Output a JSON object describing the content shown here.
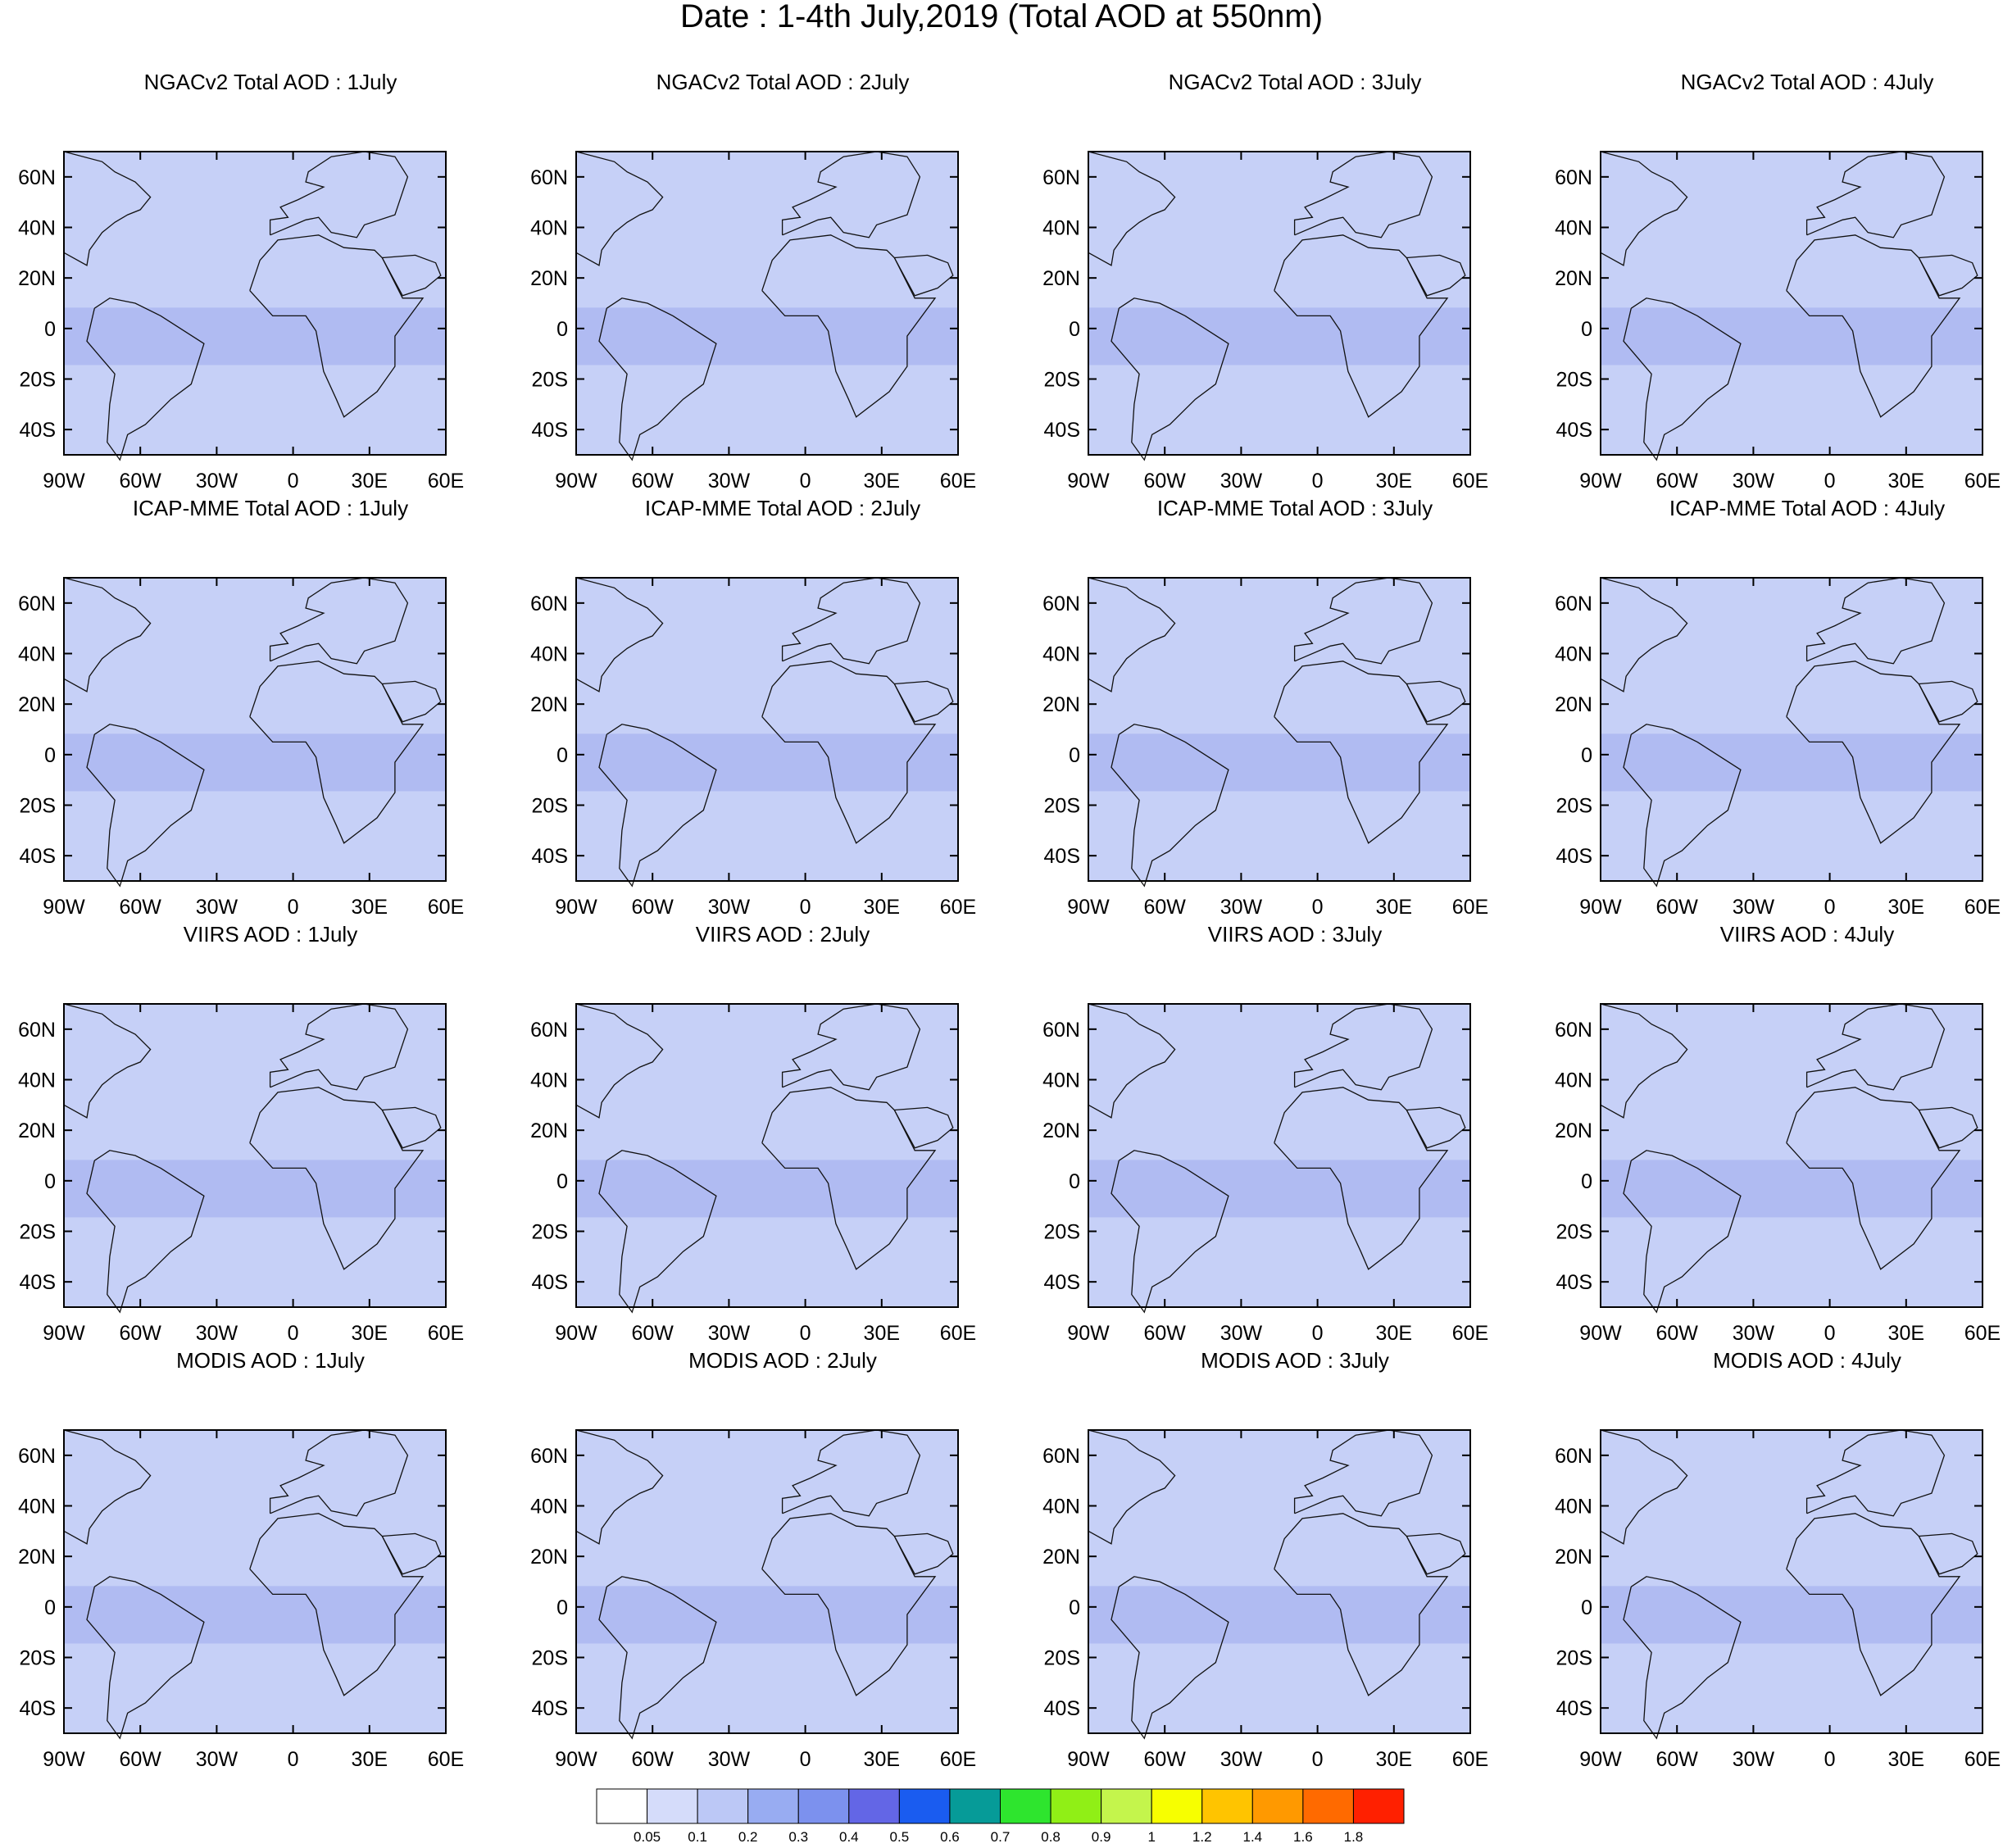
{
  "title": "Date : 1-4th July,2019 (Total AOD at 550nm)",
  "panels": [
    [
      "NGACv2 Total AOD : 1July",
      "NGACv2 Total AOD : 2July",
      "NGACv2 Total AOD : 3July",
      "NGACv2 Total AOD : 4July"
    ],
    [
      "ICAP-MME Total AOD : 1July",
      "ICAP-MME Total AOD : 2July",
      "ICAP-MME Total AOD : 3July",
      "ICAP-MME Total AOD : 4July"
    ],
    [
      "VIIRS AOD : 1July",
      "VIIRS AOD : 2July",
      "VIIRS AOD : 3July",
      "VIIRS AOD : 4July"
    ],
    [
      "MODIS AOD : 1July",
      "MODIS AOD : 2July",
      "MODIS AOD : 3July",
      "MODIS AOD : 4July"
    ]
  ],
  "map": {
    "lon_range": [
      -90,
      60
    ],
    "lat_range": [
      -50,
      70
    ],
    "lon_ticks": [
      {
        "value": -90,
        "label": "90W"
      },
      {
        "value": -60,
        "label": "60W"
      },
      {
        "value": -30,
        "label": "30W"
      },
      {
        "value": 0,
        "label": "0"
      },
      {
        "value": 30,
        "label": "30E"
      },
      {
        "value": 60,
        "label": "60E"
      }
    ],
    "lat_ticks": [
      {
        "value": 60,
        "label": "60N"
      },
      {
        "value": 40,
        "label": "40N"
      },
      {
        "value": 20,
        "label": "20N"
      },
      {
        "value": 0,
        "label": "0"
      },
      {
        "value": -20,
        "label": "20S"
      },
      {
        "value": -40,
        "label": "40S"
      }
    ]
  },
  "colorbar": {
    "colors": [
      "#ffffff",
      "#d5dcfa",
      "#bcc8f6",
      "#98acf2",
      "#7c91ee",
      "#6366e6",
      "#1a5cf0",
      "#069b98",
      "#2ee52e",
      "#90ef16",
      "#c4f54c",
      "#f7ff00",
      "#ffc400",
      "#ff9900",
      "#ff6a00",
      "#ff2000"
    ],
    "labels": [
      "0.05",
      "0.1",
      "0.2",
      "0.3",
      "0.4",
      "0.5",
      "0.6",
      "0.7",
      "0.8",
      "0.9",
      "1",
      "1.2",
      "1.4",
      "1.6",
      "1.8"
    ]
  }
}
